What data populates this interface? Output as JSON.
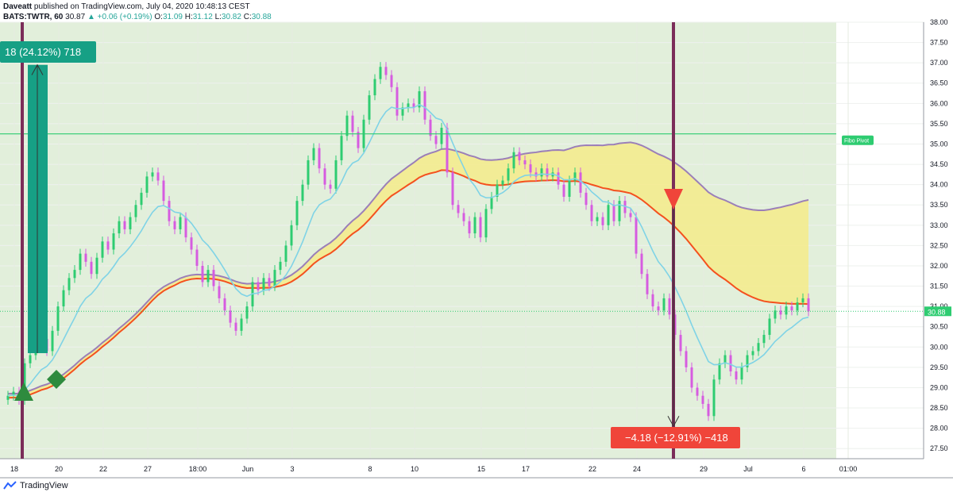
{
  "header": {
    "publisher": "Daveatt",
    "published_text": "published on TradingView.com, July 04, 2020 10:48:13 CEST",
    "symbol": "BATS:TWTR, 60",
    "last": "30.87",
    "change_arrow": "▲",
    "change": "+0.06 (+0.19%)",
    "o_label": "O:",
    "o": "31.09",
    "h_label": "H:",
    "h": "31.12",
    "l_label": "L:",
    "l": "30.82",
    "c_label": "C:",
    "c": "30.88"
  },
  "footer": {
    "brand": "TradingView"
  },
  "colors": {
    "bg_shade": "#e2efdb",
    "bull": "#2ecc71",
    "bear": "#d65ce0",
    "ema_fast": "#7fd3e6",
    "band_upper": "#9b7fb8",
    "band_lower": "#f4511e",
    "band_fill": "#f5eb8a",
    "pivot": "#2ecc71",
    "vline": "#7b2d59",
    "long_box": "#16a085",
    "short_box": "#f0453a"
  },
  "chart_data": {
    "type": "candlestick",
    "price_axis": {
      "min": 27.25,
      "max": 38.0,
      "ticks": [
        "38.00",
        "37.50",
        "37.00",
        "36.50",
        "36.00",
        "35.50",
        "35.00",
        "34.50",
        "34.00",
        "33.50",
        "33.00",
        "32.50",
        "32.00",
        "31.50",
        "31.00",
        "30.50",
        "30.00",
        "29.50",
        "29.00",
        "28.50",
        "28.00",
        "27.50"
      ]
    },
    "time_axis": {
      "ticks": [
        {
          "label": "18",
          "i": 0
        },
        {
          "label": "20",
          "i": 8
        },
        {
          "label": "22",
          "i": 16
        },
        {
          "label": "27",
          "i": 24
        },
        {
          "label": "18:00",
          "i": 33
        },
        {
          "label": "Jun",
          "i": 42
        },
        {
          "label": "3",
          "i": 50
        },
        {
          "label": "8",
          "i": 64
        },
        {
          "label": "10",
          "i": 72
        },
        {
          "label": "15",
          "i": 84
        },
        {
          "label": "17",
          "i": 92
        },
        {
          "label": "22",
          "i": 104
        },
        {
          "label": "24",
          "i": 112
        },
        {
          "label": "29",
          "i": 124
        },
        {
          "label": "Jul",
          "i": 132
        },
        {
          "label": "6",
          "i": 142
        },
        {
          "label": "01:00",
          "i": 150
        }
      ]
    },
    "candles_close": [
      28.8,
      28.9,
      28.7,
      29.6,
      29.8,
      30.1,
      30.2,
      29.9,
      30.4,
      31.0,
      31.4,
      31.7,
      31.9,
      32.3,
      32.1,
      31.8,
      32.2,
      32.6,
      32.4,
      32.8,
      33.1,
      32.9,
      33.2,
      33.5,
      33.8,
      34.2,
      34.3,
      34.1,
      33.6,
      33.1,
      32.9,
      33.2,
      32.7,
      32.4,
      32.0,
      31.6,
      31.9,
      31.5,
      31.2,
      30.9,
      30.6,
      30.4,
      30.7,
      31.0,
      31.6,
      31.4,
      31.7,
      31.5,
      31.9,
      32.1,
      32.5,
      33.0,
      33.6,
      34.0,
      34.6,
      34.9,
      34.4,
      34.0,
      33.9,
      34.6,
      35.2,
      35.7,
      35.3,
      34.9,
      35.6,
      36.2,
      36.6,
      36.9,
      36.7,
      36.4,
      35.7,
      35.9,
      36.0,
      35.9,
      36.3,
      35.6,
      35.2,
      35.0,
      35.4,
      34.3,
      33.5,
      33.3,
      33.1,
      32.8,
      33.2,
      32.7,
      33.4,
      33.7,
      34.0,
      34.1,
      34.4,
      34.8,
      34.6,
      34.5,
      34.3,
      34.2,
      34.4,
      34.2,
      34.3,
      34.0,
      33.7,
      34.1,
      34.3,
      33.8,
      33.5,
      33.1,
      33.2,
      33.0,
      33.5,
      33.1,
      33.6,
      33.3,
      33.2,
      32.3,
      31.8,
      31.3,
      31.0,
      30.9,
      31.2,
      30.8,
      30.3,
      29.9,
      29.5,
      29.0,
      28.8,
      28.6,
      28.3,
      29.2,
      29.6,
      29.8,
      29.4,
      29.2,
      29.5,
      29.8,
      29.9,
      30.1,
      30.3,
      30.7,
      30.9,
      30.8,
      31.0,
      30.9,
      31.1,
      31.2,
      30.88
    ],
    "annotations": {
      "pivot": {
        "label": "Fibo Pivot",
        "price": 35.25
      },
      "last_price_label": "30.88",
      "long_result": "18 (24.12%) 718",
      "short_result": "−4.18 (−12.91%) −418"
    }
  }
}
